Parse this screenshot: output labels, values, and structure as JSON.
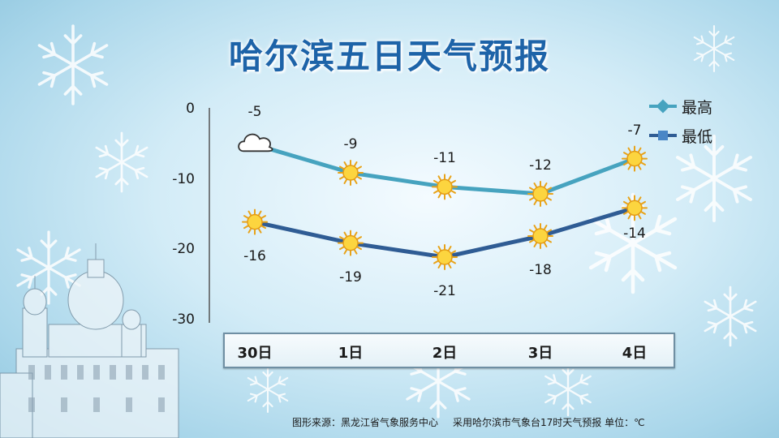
{
  "title": "哈尔滨五日天气预报",
  "legend": {
    "high": "最高",
    "low": "最低"
  },
  "footer": {
    "source": "图形来源：黑龙江省气象服务中心",
    "note": "采用哈尔滨市气象台17时天气预报 单位：℃"
  },
  "colors": {
    "high": "#46a3bf",
    "low": "#2f5c94",
    "title": "#1d63a8"
  },
  "chart_data": {
    "type": "line",
    "categories": [
      "30日",
      "1日",
      "2日",
      "3日",
      "4日"
    ],
    "series": [
      {
        "name": "最高",
        "values": [
          -5,
          -9,
          -11,
          -12,
          -7
        ],
        "icons": [
          "cloudy-icon",
          "sunny-icon",
          "sunny-icon",
          "sunny-icon",
          "sunny-icon"
        ]
      },
      {
        "name": "最低",
        "values": [
          -16,
          -19,
          -21,
          -18,
          -14
        ],
        "icons": [
          "sunny-icon",
          "sunny-icon",
          "sunny-icon",
          "sunny-icon",
          "sunny-icon"
        ]
      }
    ],
    "yticks": [
      0,
      -10,
      -20,
      -30
    ],
    "ylim": [
      -30,
      0
    ]
  }
}
